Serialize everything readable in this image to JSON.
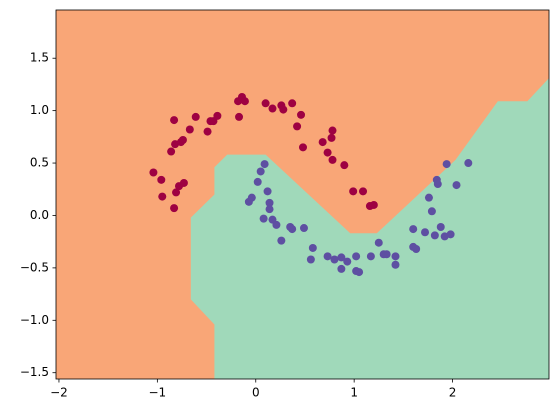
{
  "chart_data": {
    "type": "scatter",
    "xlim": [
      -2.03,
      2.98
    ],
    "ylim": [
      -1.56,
      1.96
    ],
    "xticks": [
      {
        "value": -2,
        "label": "−2"
      },
      {
        "value": -1,
        "label": "−1"
      },
      0,
      1,
      2
    ],
    "yticks": [
      {
        "value": -1.5,
        "label": "−1.5"
      },
      {
        "value": -1.0,
        "label": "−1.0"
      },
      {
        "value": -0.5,
        "label": "−0.5"
      },
      {
        "value": 0.0,
        "label": "0.0"
      },
      {
        "value": 0.5,
        "label": "0.5"
      },
      {
        "value": 1.0,
        "label": "1.0"
      },
      {
        "value": 1.5,
        "label": "1.5"
      }
    ],
    "background_color": "#f9a677",
    "region": {
      "color": "#a0d9ba",
      "x": [
        -0.42,
        -0.42,
        -0.66,
        -0.66,
        -0.42,
        -0.42,
        -0.29,
        0.1,
        0.96,
        1.23,
        2.03,
        2.46,
        2.76,
        2.98,
        2.98
      ],
      "y": [
        -1.56,
        -1.04,
        -0.8,
        -0.02,
        0.2,
        0.46,
        0.58,
        0.58,
        -0.17,
        -0.17,
        0.53,
        1.09,
        1.09,
        1.31,
        -1.56
      ]
    },
    "series": [
      {
        "color": "#9e0142",
        "x": [
          -1.04,
          -0.96,
          -0.95,
          -0.83,
          -0.81,
          -0.78,
          -0.73,
          -0.86,
          -0.83,
          -0.82,
          -0.76,
          -0.74,
          -0.67,
          -0.61,
          -0.49,
          -0.46,
          -0.43,
          -0.39,
          -0.18,
          -0.17,
          -0.14,
          -0.11,
          0.1,
          0.17,
          0.26,
          0.28,
          0.37,
          0.42,
          0.46,
          0.48,
          0.68,
          0.73,
          0.77,
          0.78,
          0.78,
          0.9,
          0.99,
          1.09,
          1.16,
          1.2
        ],
        "y": [
          0.41,
          0.34,
          0.18,
          0.07,
          0.22,
          0.28,
          0.31,
          0.61,
          0.91,
          0.68,
          0.7,
          0.72,
          0.82,
          0.94,
          0.8,
          0.9,
          0.9,
          0.95,
          1.09,
          0.94,
          1.13,
          1.09,
          1.07,
          1.02,
          1.05,
          1.01,
          1.07,
          0.85,
          0.96,
          0.65,
          0.7,
          0.6,
          0.74,
          0.81,
          0.53,
          0.48,
          0.23,
          0.23,
          0.09,
          0.1
        ]
      },
      {
        "color": "#5e4fa2",
        "x": [
          -0.07,
          -0.04,
          0.02,
          0.05,
          0.09,
          0.12,
          0.14,
          0.14,
          0.08,
          0.17,
          0.21,
          0.26,
          0.35,
          0.37,
          0.49,
          0.58,
          0.56,
          0.73,
          0.8,
          0.87,
          0.87,
          0.93,
          1.02,
          1.02,
          1.05,
          1.17,
          1.25,
          1.3,
          1.33,
          1.42,
          1.42,
          1.6,
          1.6,
          1.63,
          1.72,
          1.79,
          1.82,
          1.88,
          1.92,
          1.98,
          1.76,
          1.84,
          1.85,
          1.94,
          2.04,
          2.16
        ],
        "y": [
          0.13,
          0.17,
          0.32,
          0.42,
          0.49,
          0.23,
          0.12,
          0.06,
          -0.03,
          -0.04,
          -0.09,
          -0.24,
          -0.11,
          -0.13,
          -0.12,
          -0.31,
          -0.42,
          -0.39,
          -0.42,
          -0.4,
          -0.51,
          -0.44,
          -0.39,
          -0.53,
          -0.54,
          -0.39,
          -0.26,
          -0.37,
          -0.37,
          -0.39,
          -0.47,
          -0.13,
          -0.3,
          -0.32,
          -0.16,
          0.04,
          -0.19,
          -0.11,
          -0.2,
          -0.18,
          0.17,
          0.34,
          0.3,
          0.49,
          0.29,
          0.5
        ]
      }
    ]
  }
}
